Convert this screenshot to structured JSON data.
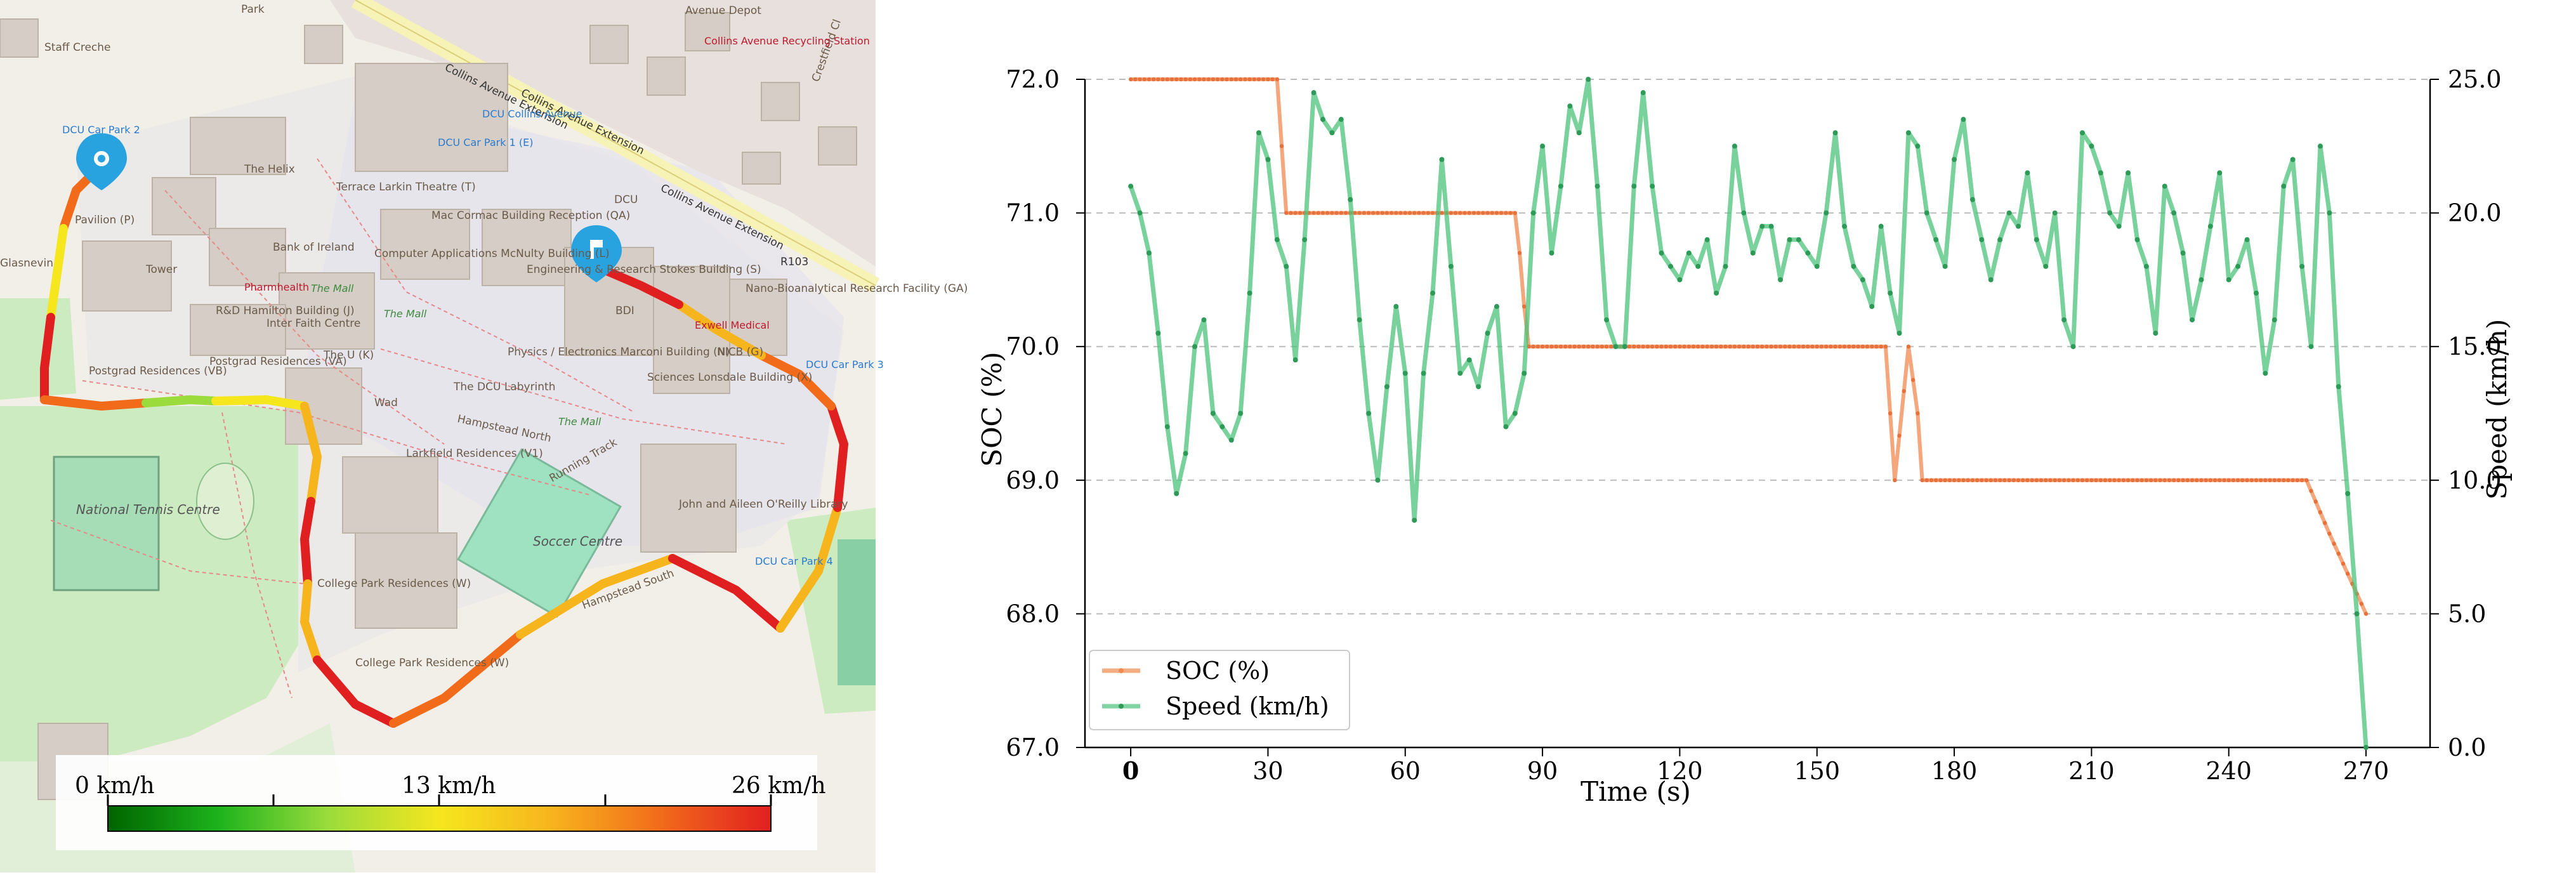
{
  "map": {
    "street_labels": [
      "Collins Avenue Extension",
      "Collins Avenue Extension",
      "Collins Avenue Extension",
      "Hampstead North",
      "Hampstead South",
      "Wad",
      "R103",
      "Crestfield Cl",
      "Glasnevin",
      "Park"
    ],
    "place_labels": [
      "DCU Car Park 2",
      "Pavilion (P)",
      "The Helix",
      "Bank of Ireland",
      "Pharmhealth",
      "Terrace Larkin Theatre (T)",
      "Mac Cormac Building Reception (QA)",
      "Computer Applications McNulty Building (L)",
      "DCU Car Park 1 (E)",
      "DCU Collins Avenue",
      "Engineering & Research Stokes Building (S)",
      "Physics / Electronics Marconi Building (N)",
      "R&D Hamilton Building (J)",
      "Inter Faith Centre",
      "Tower",
      "Postgrad Residences (VB)",
      "Postgrad Residences (VA)",
      "The U (K)",
      "The DCU Labyrinth",
      "Larkfield Residences (V1)",
      "Sciences Lonsdale Building (X)",
      "NICB (G)",
      "Nano-Bioanalytical Research Facility (GA)",
      "Exwell Medical",
      "DCU Car Park 3",
      "DCU Car Park 4",
      "National Tennis Centre",
      "Soccer Centre",
      "Running Track",
      "John and Aileen O'Reilly Library",
      "College Park Residences (W)",
      "College Park Residences (W)",
      "Avenue Depot",
      "Collins Avenue Recycling Station",
      "Staff Creche",
      "BDI",
      "DCU",
      "The Mall",
      "The Mall",
      "The Mall"
    ],
    "colorbar": {
      "labels": [
        "0 km/h",
        "13 km/h",
        "26 km/h"
      ],
      "min_kmh": 0,
      "max_kmh": 26,
      "colors": [
        "#006400",
        "#1db31d",
        "#9bdc3c",
        "#f5e61e",
        "#f7b51d",
        "#f26b1b",
        "#e02020"
      ]
    },
    "marker_colors": {
      "start": "#29a3e0",
      "end": "#29a3e0"
    }
  },
  "chart_data": {
    "type": "line",
    "xlabel": "Time (s)",
    "ylabel_left": "SOC (%)",
    "ylabel_right": "Speed (km/h)",
    "xlim": [
      -10,
      284
    ],
    "ylim_left": [
      67.0,
      72.0
    ],
    "ylim_right": [
      0.0,
      25.0
    ],
    "xticks": [
      "0",
      "30",
      "60",
      "90",
      "120",
      "150",
      "180",
      "210",
      "240",
      "270"
    ],
    "yticks_left": [
      "67.0",
      "68.0",
      "69.0",
      "70.0",
      "71.0",
      "72.0"
    ],
    "yticks_right": [
      "0.0",
      "5.0",
      "10.0",
      "15.0",
      "20.0",
      "25.0"
    ],
    "grid": "horizontal dashed",
    "legend_position": "lower-left",
    "series": [
      {
        "name": "SOC (%)",
        "axis": "left",
        "color": "#f08a50",
        "x": [
          0,
          32,
          33,
          34,
          84,
          85,
          86,
          87,
          165,
          166,
          167,
          170,
          172,
          173,
          257,
          262,
          266,
          270
        ],
        "y": [
          72.0,
          72.0,
          71.5,
          71.0,
          71.0,
          70.7,
          70.3,
          70.0,
          70.0,
          69.5,
          69.0,
          70.0,
          69.5,
          69.0,
          69.0,
          68.6,
          68.3,
          68.0
        ]
      },
      {
        "name": "Speed (km/h)",
        "axis": "right",
        "color": "#4cc27a",
        "x": [
          0,
          2,
          4,
          6,
          8,
          10,
          12,
          14,
          16,
          18,
          20,
          22,
          24,
          26,
          28,
          30,
          32,
          34,
          36,
          38,
          40,
          42,
          44,
          46,
          48,
          50,
          52,
          54,
          56,
          58,
          60,
          62,
          64,
          66,
          68,
          70,
          72,
          74,
          76,
          78,
          80,
          82,
          84,
          86,
          88,
          90,
          92,
          94,
          96,
          98,
          100,
          102,
          104,
          106,
          108,
          110,
          112,
          114,
          116,
          118,
          120,
          122,
          124,
          126,
          128,
          130,
          132,
          134,
          136,
          138,
          140,
          142,
          144,
          146,
          148,
          150,
          152,
          154,
          156,
          158,
          160,
          162,
          164,
          166,
          168,
          170,
          172,
          174,
          176,
          178,
          180,
          182,
          184,
          186,
          188,
          190,
          192,
          194,
          196,
          198,
          200,
          202,
          204,
          206,
          208,
          210,
          212,
          214,
          216,
          218,
          220,
          222,
          224,
          226,
          228,
          230,
          232,
          234,
          236,
          238,
          240,
          242,
          244,
          246,
          248,
          250,
          252,
          254,
          256,
          258,
          260,
          262,
          264,
          266,
          268,
          270
        ],
        "y": [
          21.0,
          20.0,
          18.5,
          15.5,
          12.0,
          9.5,
          11.0,
          15.0,
          16.0,
          12.5,
          12.0,
          11.5,
          12.5,
          17.0,
          23.0,
          22.0,
          19.0,
          18.0,
          14.5,
          19.0,
          24.5,
          23.5,
          23.0,
          23.5,
          20.5,
          16.0,
          12.5,
          10.0,
          13.5,
          16.5,
          14.0,
          8.5,
          14.0,
          17.0,
          22.0,
          18.0,
          14.0,
          14.5,
          13.5,
          15.5,
          16.5,
          12.0,
          12.5,
          14.0,
          20.0,
          22.5,
          18.5,
          21.0,
          24.0,
          23.0,
          25.0,
          21.0,
          16.0,
          15.0,
          15.0,
          21.0,
          24.5,
          21.0,
          18.5,
          18.0,
          17.5,
          18.5,
          18.0,
          19.0,
          17.0,
          18.0,
          22.5,
          20.0,
          18.5,
          19.5,
          19.5,
          17.5,
          19.0,
          19.0,
          18.5,
          18.0,
          20.0,
          23.0,
          19.5,
          18.0,
          17.5,
          16.5,
          19.5,
          17.0,
          15.5,
          23.0,
          22.5,
          20.0,
          19.0,
          18.0,
          22.0,
          23.5,
          20.5,
          19.0,
          17.5,
          19.0,
          20.0,
          19.5,
          21.5,
          19.0,
          18.0,
          20.0,
          16.0,
          15.0,
          23.0,
          22.5,
          21.5,
          20.0,
          19.5,
          21.5,
          19.0,
          18.0,
          15.5,
          21.0,
          20.0,
          18.5,
          16.0,
          17.5,
          19.5,
          21.5,
          17.5,
          18.0,
          19.0,
          17.0,
          14.0,
          16.0,
          21.0,
          22.0,
          18.0,
          15.0,
          22.5,
          20.0,
          13.5,
          9.5,
          5.0,
          0.0
        ]
      }
    ]
  }
}
